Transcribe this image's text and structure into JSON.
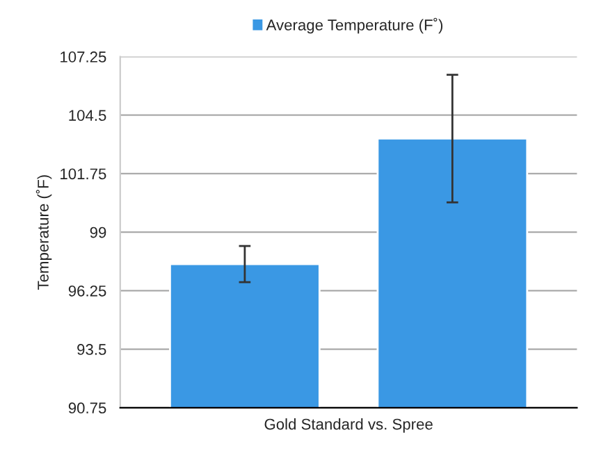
{
  "chart_data": {
    "type": "bar",
    "xlabel": "Gold Standard vs. Spree",
    "ylabel": "Temperature (˚F)",
    "categories": [
      null,
      null
    ],
    "series": [
      {
        "name": "Average Temperature (F˚)",
        "color": "#3a98e4",
        "values": [
          97.5,
          103.4
        ],
        "errors": [
          0.85,
          3.0
        ]
      }
    ],
    "ylim": [
      90.75,
      107.25
    ],
    "yticks": [
      90.75,
      93.5,
      96.25,
      99,
      101.75,
      104.5,
      107.25
    ],
    "grid": "y",
    "legend": "top"
  }
}
